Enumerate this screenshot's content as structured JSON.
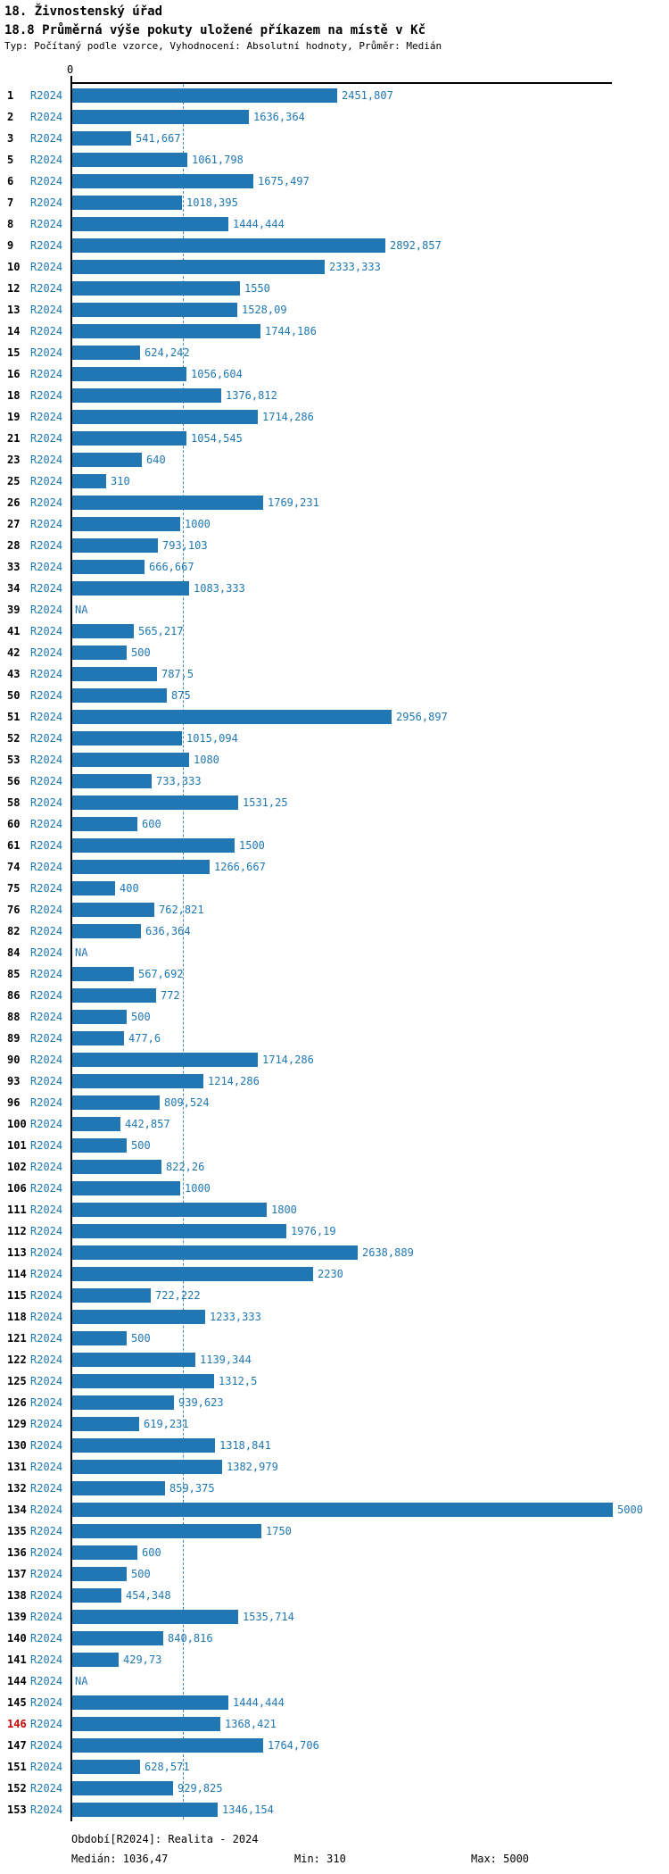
{
  "header": {
    "title": "18. Živnostenský úřad",
    "subtitle": "18.8 Průměrná výše pokuty uložené příkazem na místě v Kč",
    "meta": "Typ: Počítaný podle vzorce, Vyhodnocení: Absolutní hodnoty, Průměr: Medián"
  },
  "chart_data": {
    "type": "bar",
    "orientation": "horizontal",
    "series_label": "R2024",
    "title": "18.8 Průměrná výše pokuty uložené příkazem na místě v Kč",
    "axis": {
      "zero_label": "0",
      "xmin": 0,
      "xmax": 5000,
      "median_line_value": 1036.47
    },
    "colors": {
      "bar": "#2077b4",
      "text": "#2077b4",
      "highlight_row_number": "#cc0000"
    },
    "highlighted_row_id": "146",
    "rows": [
      {
        "id": "1",
        "value": 2451.807,
        "label": "2451,807"
      },
      {
        "id": "2",
        "value": 1636.364,
        "label": "1636,364"
      },
      {
        "id": "3",
        "value": 541.667,
        "label": "541,667"
      },
      {
        "id": "5",
        "value": 1061.798,
        "label": "1061,798"
      },
      {
        "id": "6",
        "value": 1675.497,
        "label": "1675,497"
      },
      {
        "id": "7",
        "value": 1018.395,
        "label": "1018,395"
      },
      {
        "id": "8",
        "value": 1444.444,
        "label": "1444,444"
      },
      {
        "id": "9",
        "value": 2892.857,
        "label": "2892,857"
      },
      {
        "id": "10",
        "value": 2333.333,
        "label": "2333,333"
      },
      {
        "id": "12",
        "value": 1550,
        "label": "1550"
      },
      {
        "id": "13",
        "value": 1528.09,
        "label": "1528,09"
      },
      {
        "id": "14",
        "value": 1744.186,
        "label": "1744,186"
      },
      {
        "id": "15",
        "value": 624.242,
        "label": "624,242"
      },
      {
        "id": "16",
        "value": 1056.604,
        "label": "1056,604"
      },
      {
        "id": "18",
        "value": 1376.812,
        "label": "1376,812"
      },
      {
        "id": "19",
        "value": 1714.286,
        "label": "1714,286"
      },
      {
        "id": "21",
        "value": 1054.545,
        "label": "1054,545"
      },
      {
        "id": "23",
        "value": 640,
        "label": "640"
      },
      {
        "id": "25",
        "value": 310,
        "label": "310"
      },
      {
        "id": "26",
        "value": 1769.231,
        "label": "1769,231"
      },
      {
        "id": "27",
        "value": 1000,
        "label": "1000"
      },
      {
        "id": "28",
        "value": 793.103,
        "label": "793,103"
      },
      {
        "id": "33",
        "value": 666.667,
        "label": "666,667"
      },
      {
        "id": "34",
        "value": 1083.333,
        "label": "1083,333"
      },
      {
        "id": "39",
        "value": null,
        "label": "NA"
      },
      {
        "id": "41",
        "value": 565.217,
        "label": "565,217"
      },
      {
        "id": "42",
        "value": 500,
        "label": "500"
      },
      {
        "id": "43",
        "value": 787.5,
        "label": "787,5"
      },
      {
        "id": "50",
        "value": 875,
        "label": "875"
      },
      {
        "id": "51",
        "value": 2956.897,
        "label": "2956,897"
      },
      {
        "id": "52",
        "value": 1015.094,
        "label": "1015,094"
      },
      {
        "id": "53",
        "value": 1080,
        "label": "1080"
      },
      {
        "id": "56",
        "value": 733.333,
        "label": "733,333"
      },
      {
        "id": "58",
        "value": 1531.25,
        "label": "1531,25"
      },
      {
        "id": "60",
        "value": 600,
        "label": "600"
      },
      {
        "id": "61",
        "value": 1500,
        "label": "1500"
      },
      {
        "id": "74",
        "value": 1266.667,
        "label": "1266,667"
      },
      {
        "id": "75",
        "value": 400,
        "label": "400"
      },
      {
        "id": "76",
        "value": 762.821,
        "label": "762,821"
      },
      {
        "id": "82",
        "value": 636.364,
        "label": "636,364"
      },
      {
        "id": "84",
        "value": null,
        "label": "NA"
      },
      {
        "id": "85",
        "value": 567.692,
        "label": "567,692"
      },
      {
        "id": "86",
        "value": 772,
        "label": "772"
      },
      {
        "id": "88",
        "value": 500,
        "label": "500"
      },
      {
        "id": "89",
        "value": 477.6,
        "label": "477,6"
      },
      {
        "id": "90",
        "value": 1714.286,
        "label": "1714,286"
      },
      {
        "id": "93",
        "value": 1214.286,
        "label": "1214,286"
      },
      {
        "id": "96",
        "value": 809.524,
        "label": "809,524"
      },
      {
        "id": "100",
        "value": 442.857,
        "label": "442,857"
      },
      {
        "id": "101",
        "value": 500,
        "label": "500"
      },
      {
        "id": "102",
        "value": 822.26,
        "label": "822,26"
      },
      {
        "id": "106",
        "value": 1000,
        "label": "1000"
      },
      {
        "id": "111",
        "value": 1800,
        "label": "1800"
      },
      {
        "id": "112",
        "value": 1976.19,
        "label": "1976,19"
      },
      {
        "id": "113",
        "value": 2638.889,
        "label": "2638,889"
      },
      {
        "id": "114",
        "value": 2230,
        "label": "2230"
      },
      {
        "id": "115",
        "value": 722.222,
        "label": "722,222"
      },
      {
        "id": "118",
        "value": 1233.333,
        "label": "1233,333"
      },
      {
        "id": "121",
        "value": 500,
        "label": "500"
      },
      {
        "id": "122",
        "value": 1139.344,
        "label": "1139,344"
      },
      {
        "id": "125",
        "value": 1312.5,
        "label": "1312,5"
      },
      {
        "id": "126",
        "value": 939.623,
        "label": "939,623"
      },
      {
        "id": "129",
        "value": 619.231,
        "label": "619,231"
      },
      {
        "id": "130",
        "value": 1318.841,
        "label": "1318,841"
      },
      {
        "id": "131",
        "value": 1382.979,
        "label": "1382,979"
      },
      {
        "id": "132",
        "value": 859.375,
        "label": "859,375"
      },
      {
        "id": "134",
        "value": 5000,
        "label": "5000"
      },
      {
        "id": "135",
        "value": 1750,
        "label": "1750"
      },
      {
        "id": "136",
        "value": 600,
        "label": "600"
      },
      {
        "id": "137",
        "value": 500,
        "label": "500"
      },
      {
        "id": "138",
        "value": 454.348,
        "label": "454,348"
      },
      {
        "id": "139",
        "value": 1535.714,
        "label": "1535,714"
      },
      {
        "id": "140",
        "value": 840.816,
        "label": "840,816"
      },
      {
        "id": "141",
        "value": 429.73,
        "label": "429,73"
      },
      {
        "id": "144",
        "value": null,
        "label": "NA"
      },
      {
        "id": "145",
        "value": 1444.444,
        "label": "1444,444"
      },
      {
        "id": "146",
        "value": 1368.421,
        "label": "1368,421"
      },
      {
        "id": "147",
        "value": 1764.706,
        "label": "1764,706"
      },
      {
        "id": "151",
        "value": 628.571,
        "label": "628,571"
      },
      {
        "id": "152",
        "value": 929.825,
        "label": "929,825"
      },
      {
        "id": "153",
        "value": 1346.154,
        "label": "1346,154"
      }
    ]
  },
  "footer": {
    "period": "Období[R2024]: Realita - 2024",
    "median": "Medián: 1036,47",
    "min": "Min: 310",
    "max": "Max: 5000"
  }
}
